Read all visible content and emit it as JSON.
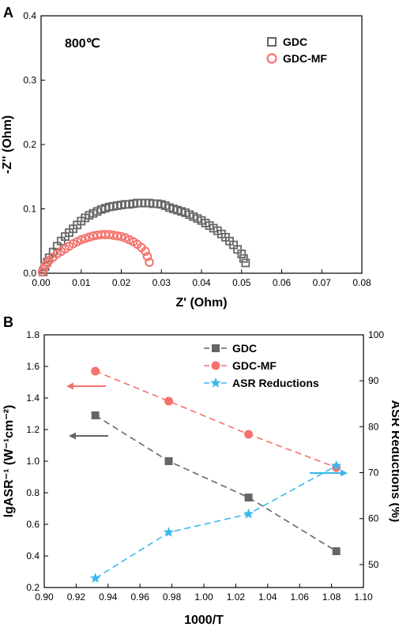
{
  "chart_data": [
    {
      "panel_label": "A",
      "type": "scatter",
      "xlabel": "Z' (Ohm)",
      "ylabel": "-Z'' (Ohm)",
      "xlim": [
        0,
        0.08
      ],
      "ylim": [
        0,
        0.4
      ],
      "xticks": [
        "0.00",
        "0.01",
        "0.02",
        "0.03",
        "0.04",
        "0.05",
        "0.06",
        "0.07",
        "0.08"
      ],
      "yticks": [
        "0.0",
        "0.1",
        "0.2",
        "0.3",
        "0.4"
      ],
      "annotation": "800℃",
      "legend_position": "top-right",
      "series": [
        {
          "name": "GDC",
          "marker": "square-open",
          "color": "#666666",
          "points": [
            [
              0.0005,
              0.002
            ],
            [
              0.001,
              0.01
            ],
            [
              0.0015,
              0.017
            ],
            [
              0.002,
              0.024
            ],
            [
              0.003,
              0.033
            ],
            [
              0.004,
              0.042
            ],
            [
              0.005,
              0.05
            ],
            [
              0.006,
              0.057
            ],
            [
              0.007,
              0.063
            ],
            [
              0.008,
              0.069
            ],
            [
              0.009,
              0.075
            ],
            [
              0.01,
              0.081
            ],
            [
              0.011,
              0.086
            ],
            [
              0.012,
              0.09
            ],
            [
              0.013,
              0.093
            ],
            [
              0.014,
              0.096
            ],
            [
              0.015,
              0.099
            ],
            [
              0.016,
              0.101
            ],
            [
              0.017,
              0.103
            ],
            [
              0.018,
              0.104
            ],
            [
              0.019,
              0.105
            ],
            [
              0.02,
              0.106
            ],
            [
              0.021,
              0.107
            ],
            [
              0.022,
              0.107
            ],
            [
              0.023,
              0.108
            ],
            [
              0.024,
              0.109
            ],
            [
              0.025,
              0.109
            ],
            [
              0.026,
              0.109
            ],
            [
              0.027,
              0.109
            ],
            [
              0.028,
              0.108
            ],
            [
              0.029,
              0.108
            ],
            [
              0.03,
              0.107
            ],
            [
              0.031,
              0.105
            ],
            [
              0.032,
              0.102
            ],
            [
              0.033,
              0.1
            ],
            [
              0.034,
              0.098
            ],
            [
              0.035,
              0.096
            ],
            [
              0.036,
              0.094
            ],
            [
              0.037,
              0.091
            ],
            [
              0.038,
              0.088
            ],
            [
              0.039,
              0.085
            ],
            [
              0.04,
              0.082
            ],
            [
              0.041,
              0.078
            ],
            [
              0.042,
              0.074
            ],
            [
              0.043,
              0.07
            ],
            [
              0.044,
              0.066
            ],
            [
              0.045,
              0.061
            ],
            [
              0.046,
              0.056
            ],
            [
              0.047,
              0.05
            ],
            [
              0.048,
              0.044
            ],
            [
              0.049,
              0.037
            ],
            [
              0.05,
              0.03
            ],
            [
              0.0505,
              0.023
            ],
            [
              0.051,
              0.016
            ]
          ]
        },
        {
          "name": "GDC-MF",
          "marker": "circle-open",
          "color": "#f4736e",
          "points": [
            [
              0.0003,
              0.002
            ],
            [
              0.0006,
              0.007
            ],
            [
              0.001,
              0.012
            ],
            [
              0.0015,
              0.016
            ],
            [
              0.002,
              0.02
            ],
            [
              0.003,
              0.025
            ],
            [
              0.004,
              0.03
            ],
            [
              0.005,
              0.034
            ],
            [
              0.006,
              0.038
            ],
            [
              0.007,
              0.042
            ],
            [
              0.008,
              0.046
            ],
            [
              0.009,
              0.049
            ],
            [
              0.01,
              0.052
            ],
            [
              0.011,
              0.054
            ],
            [
              0.012,
              0.056
            ],
            [
              0.013,
              0.058
            ],
            [
              0.014,
              0.059
            ],
            [
              0.015,
              0.06
            ],
            [
              0.016,
              0.06
            ],
            [
              0.017,
              0.06
            ],
            [
              0.018,
              0.059
            ],
            [
              0.019,
              0.058
            ],
            [
              0.02,
              0.057
            ],
            [
              0.021,
              0.055
            ],
            [
              0.022,
              0.052
            ],
            [
              0.023,
              0.049
            ],
            [
              0.024,
              0.045
            ],
            [
              0.025,
              0.04
            ],
            [
              0.026,
              0.034
            ],
            [
              0.0265,
              0.026
            ],
            [
              0.027,
              0.017
            ]
          ]
        }
      ]
    },
    {
      "panel_label": "B",
      "type": "line",
      "xlabel": "1000/T",
      "ylabel": "lgASR⁻¹ (W⁻¹cm⁻²)",
      "ylabel_right": "ASR Reductions (%)",
      "xlim": [
        0.9,
        1.1
      ],
      "ylim": [
        0.2,
        1.8
      ],
      "ylim_right": [
        45,
        100
      ],
      "xticks": [
        "0.90",
        "0.92",
        "0.94",
        "0.96",
        "0.98",
        "1.00",
        "1.02",
        "1.04",
        "1.06",
        "1.08",
        "1.10"
      ],
      "yticks": [
        "0.2",
        "0.4",
        "0.6",
        "0.8",
        "1.0",
        "1.2",
        "1.4",
        "1.6",
        "1.8"
      ],
      "yticks_right": [
        "50",
        "60",
        "70",
        "80",
        "90",
        "100"
      ],
      "legend_position": "top-right",
      "series": [
        {
          "name": "GDC",
          "axis": "left",
          "marker": "square",
          "color": "#666666",
          "x": [
            0.932,
            0.978,
            1.028,
            1.083
          ],
          "y": [
            1.29,
            1.0,
            0.77,
            0.43
          ]
        },
        {
          "name": "GDC-MF",
          "axis": "left",
          "marker": "circle",
          "color": "#f4736e",
          "x": [
            0.932,
            0.978,
            1.028,
            1.083
          ],
          "y": [
            1.57,
            1.38,
            1.17,
            0.96
          ]
        },
        {
          "name": "ASR Reductions",
          "axis": "right",
          "marker": "star",
          "color": "#3ab8ec",
          "x": [
            0.932,
            0.978,
            1.028,
            1.083
          ],
          "y": [
            47,
            57,
            61,
            71.5
          ]
        }
      ]
    }
  ]
}
